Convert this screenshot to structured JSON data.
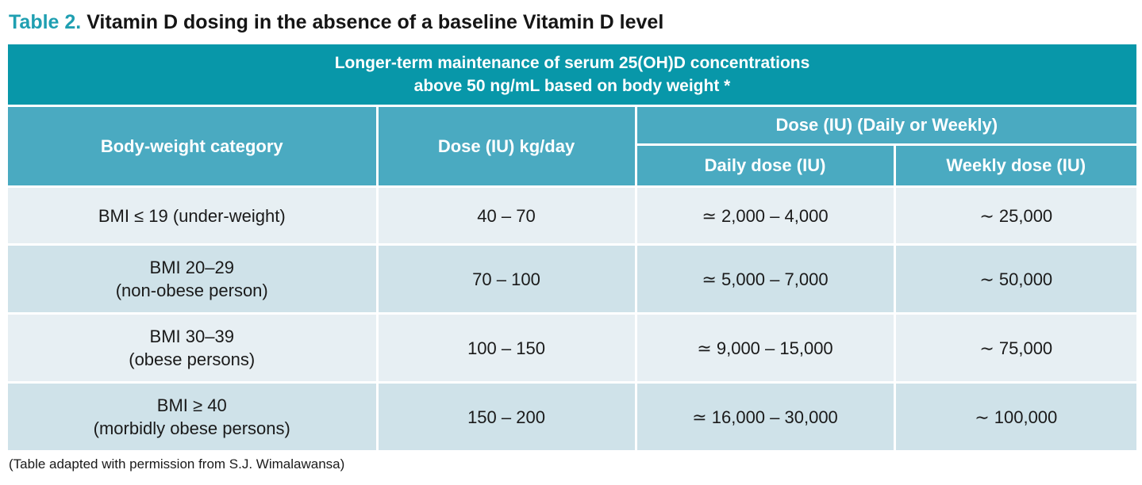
{
  "title": {
    "label": "Table 2.",
    "text": "Vitamin D dosing in the absence of a baseline Vitamin D level"
  },
  "table": {
    "banner": {
      "line1": "Longer-term maintenance of serum 25(OH)D concentrations",
      "line2": "above 50 ng/mL based on body weight *"
    },
    "headers": {
      "category": "Body-weight category",
      "dose_per_kg": "Dose (IU) kg/day",
      "group": "Dose (IU) (Daily or Weekly)",
      "daily": "Daily dose (IU)",
      "weekly": "Weekly dose (IU)"
    },
    "rows": [
      {
        "category_line1": "BMI ≤ 19 (under-weight)",
        "category_line2": "",
        "dose_per_kg": "40 – 70",
        "daily": "≃ 2,000 – 4,000",
        "weekly": "∼ 25,000"
      },
      {
        "category_line1": "BMI 20–29",
        "category_line2": "(non-obese person)",
        "dose_per_kg": "70 – 100",
        "daily": "≃ 5,000 – 7,000",
        "weekly": "∼ 50,000"
      },
      {
        "category_line1": "BMI 30–39",
        "category_line2": "(obese persons)",
        "dose_per_kg": "100 – 150",
        "daily": "≃ 9,000 – 15,000",
        "weekly": "∼ 75,000"
      },
      {
        "category_line1": "BMI ≥ 40",
        "category_line2": "(morbidly obese persons)",
        "dose_per_kg": "150 – 200",
        "daily": "≃ 16,000 – 30,000",
        "weekly": "∼ 100,000"
      }
    ]
  },
  "footnote": "(Table adapted with permission from S.J. Wimalawansa)",
  "colors": {
    "title_label": "#1f9fb1",
    "banner": "#0897a9",
    "header": "#4aaac1",
    "row_light": "#e7eff3",
    "row_dark": "#cfe2e9"
  }
}
